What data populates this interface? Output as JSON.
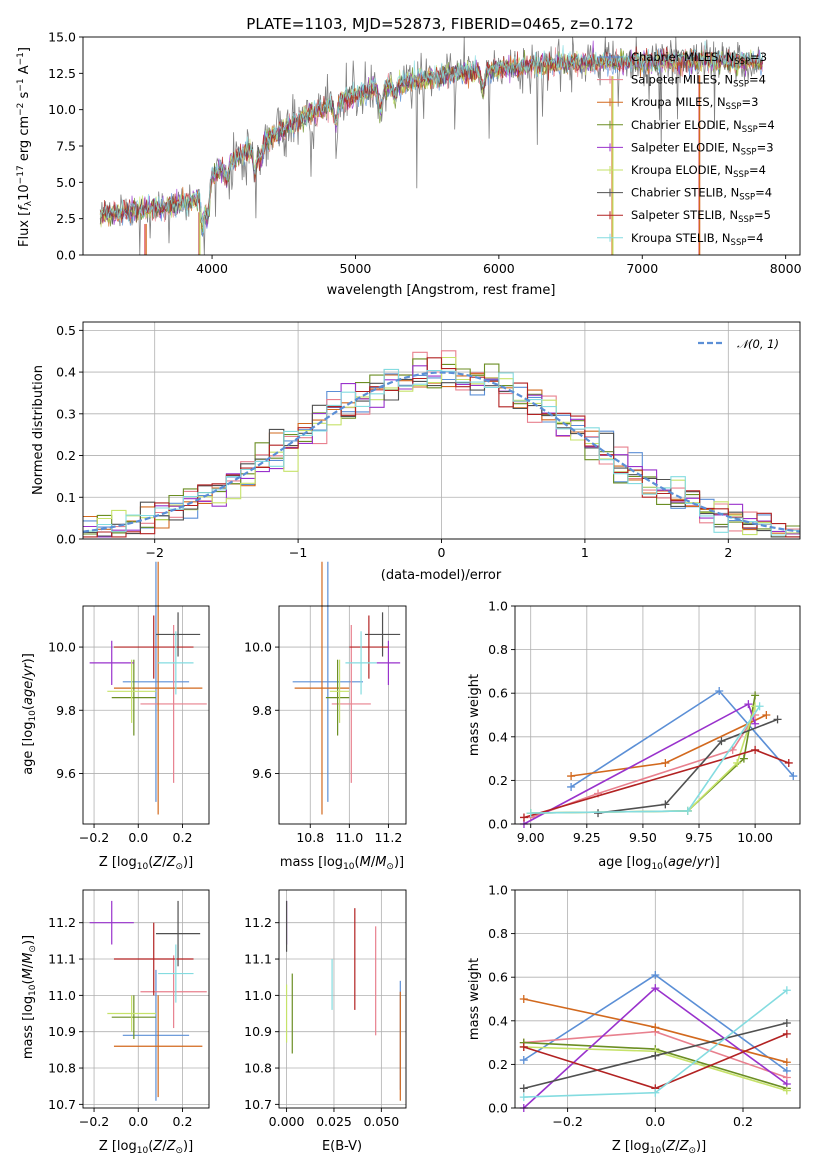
{
  "colors": {
    "Chabrier MILES": "#5b8fd6",
    "Salpeter MILES": "#e8808e",
    "Kroupa MILES": "#d2691e",
    "Chabrier ELODIE": "#6b8e23",
    "Salpeter ELODIE": "#9932cc",
    "Kroupa ELODIE": "#c6e26a",
    "Chabrier STELIB": "#505050",
    "Salpeter STELIB": "#b22222",
    "Kroupa STELIB": "#84dce0"
  },
  "chart_data": [
    {
      "id": "spectrum",
      "type": "line",
      "title": "PLATE=1103, MJD=52873, FIBERID=0465, z=0.172",
      "xlabel": "wavelength [Angstrom, rest frame]",
      "ylabel": "Flux [f_λ 10^-17 erg cm^-2 s^-1 A^-1]",
      "xlim": [
        3100,
        8100
      ],
      "ylim": [
        0,
        15
      ],
      "xticks": [
        "4000",
        "5000",
        "6000",
        "7000",
        "8000"
      ],
      "yticks": [
        "0.0",
        "2.5",
        "5.0",
        "7.5",
        "10.0",
        "12.5",
        "15.0"
      ],
      "grid": false,
      "legend_position": "top-right",
      "continuum": [
        [
          3200,
          2.7
        ],
        [
          3400,
          3.0
        ],
        [
          3600,
          3.2
        ],
        [
          3800,
          3.5
        ],
        [
          3950,
          4.1
        ],
        [
          4000,
          5.5
        ],
        [
          4200,
          6.8
        ],
        [
          4400,
          8.0
        ],
        [
          4600,
          9.3
        ],
        [
          4800,
          10.2
        ],
        [
          5000,
          11.0
        ],
        [
          5200,
          11.6
        ],
        [
          5400,
          12.0
        ],
        [
          5600,
          12.3
        ],
        [
          5800,
          12.6
        ],
        [
          6000,
          12.8
        ],
        [
          6200,
          13.0
        ],
        [
          6500,
          13.2
        ],
        [
          6800,
          13.3
        ],
        [
          7000,
          13.3
        ],
        [
          7300,
          13.4
        ],
        [
          7600,
          13.3
        ],
        [
          7850,
          13.2
        ]
      ],
      "series": [
        {
          "name": "Chabrier MILES, N_SSP=3",
          "label": "Chabrier MILES, N",
          "nssp": "=3"
        },
        {
          "name": "Salpeter MILES, N_SSP=4",
          "label": "Salpeter MILES, N",
          "nssp": "=4"
        },
        {
          "name": "Kroupa MILES, N_SSP=3",
          "label": "Kroupa MILES, N",
          "nssp": "=3"
        },
        {
          "name": "Chabrier ELODIE, N_SSP=4",
          "label": "Chabrier ELODIE, N",
          "nssp": "=4"
        },
        {
          "name": "Salpeter ELODIE, N_SSP=3",
          "label": "Salpeter ELODIE, N",
          "nssp": "=3"
        },
        {
          "name": "Kroupa ELODIE, N_SSP=4",
          "label": "Kroupa ELODIE, N",
          "nssp": "=4"
        },
        {
          "name": "Chabrier STELIB, N_SSP=4",
          "label": "Chabrier STELIB, N",
          "nssp": "=4"
        },
        {
          "name": "Salpeter STELIB, N_SSP=5",
          "label": "Salpeter STELIB, N",
          "nssp": "=5"
        },
        {
          "name": "Kroupa STELIB, N_SSP=4",
          "label": "Kroupa STELIB, N",
          "nssp": "=4"
        }
      ],
      "legend_subscript": "SSP"
    },
    {
      "id": "residuals",
      "type": "line",
      "xlabel": "(data-model)/error",
      "ylabel": "Normed distribution",
      "xlim": [
        -2.5,
        2.5
      ],
      "ylim": [
        0,
        0.52
      ],
      "xticks": [
        "−2",
        "−1",
        "0",
        "1",
        "2"
      ],
      "yticks": [
        "0.0",
        "0.1",
        "0.2",
        "0.3",
        "0.4",
        "0.5"
      ],
      "grid": true,
      "legend": "𝒩(0, 1)",
      "legend_position": "top-right",
      "bin_width": 0.1
    },
    {
      "id": "age-vs-Z",
      "type": "scatter",
      "xlabel": "Z [log10(Z/Z⊙)]",
      "ylabel": "age [log10(age/yr)]",
      "xlim": [
        -0.25,
        0.32
      ],
      "ylim": [
        9.44,
        10.13
      ],
      "xticks": [
        "−0.2",
        "0.0",
        "0.2"
      ],
      "yticks": [
        "9.6",
        "9.8",
        "10.0"
      ],
      "grid": true,
      "points": [
        {
          "model": "Chabrier MILES",
          "x": 0.08,
          "xerr": 0.15,
          "y": 9.89,
          "yerr": 0.38
        },
        {
          "model": "Salpeter MILES",
          "x": 0.16,
          "xerr": 0.15,
          "y": 9.82,
          "yerr": 0.25
        },
        {
          "model": "Kroupa MILES",
          "x": 0.09,
          "xerr": 0.2,
          "y": 9.87,
          "yerr": 0.4
        },
        {
          "model": "Chabrier ELODIE",
          "x": -0.02,
          "xerr": 0.1,
          "y": 9.84,
          "yerr": 0.12
        },
        {
          "model": "Salpeter ELODIE",
          "x": -0.12,
          "xerr": 0.1,
          "y": 9.95,
          "yerr": 0.07
        },
        {
          "model": "Kroupa ELODIE",
          "x": -0.03,
          "xerr": 0.11,
          "y": 9.86,
          "yerr": 0.1
        },
        {
          "model": "Chabrier STELIB",
          "x": 0.18,
          "xerr": 0.1,
          "y": 10.04,
          "yerr": 0.07
        },
        {
          "model": "Salpeter STELIB",
          "x": 0.07,
          "xerr": 0.18,
          "y": 10.0,
          "yerr": 0.1
        },
        {
          "model": "Kroupa STELIB",
          "x": 0.17,
          "xerr": 0.08,
          "y": 9.95,
          "yerr": 0.1
        }
      ]
    },
    {
      "id": "age-vs-mass",
      "type": "scatter",
      "xlabel": "mass [log10(M/M⊙)]",
      "ylabel": "",
      "xlim": [
        10.64,
        11.29
      ],
      "ylim": [
        9.44,
        10.13
      ],
      "xticks": [
        "10.8",
        "11.0",
        "11.2"
      ],
      "yticks": [
        "9.6",
        "9.8",
        "10.0"
      ],
      "grid": true,
      "points": [
        {
          "model": "Chabrier MILES",
          "x": 10.89,
          "xerr": 0.18,
          "y": 9.89,
          "yerr": 0.38
        },
        {
          "model": "Salpeter MILES",
          "x": 11.01,
          "xerr": 0.1,
          "y": 9.82,
          "yerr": 0.25
        },
        {
          "model": "Kroupa MILES",
          "x": 10.86,
          "xerr": 0.14,
          "y": 9.87,
          "yerr": 0.4
        },
        {
          "model": "Chabrier ELODIE",
          "x": 10.94,
          "xerr": 0.06,
          "y": 9.84,
          "yerr": 0.12
        },
        {
          "model": "Salpeter ELODIE",
          "x": 11.2,
          "xerr": 0.06,
          "y": 9.95,
          "yerr": 0.07
        },
        {
          "model": "Kroupa ELODIE",
          "x": 10.95,
          "xerr": 0.05,
          "y": 9.86,
          "yerr": 0.1
        },
        {
          "model": "Chabrier STELIB",
          "x": 11.17,
          "xerr": 0.09,
          "y": 10.04,
          "yerr": 0.07
        },
        {
          "model": "Salpeter STELIB",
          "x": 11.1,
          "xerr": 0.1,
          "y": 10.0,
          "yerr": 0.1
        },
        {
          "model": "Kroupa STELIB",
          "x": 11.06,
          "xerr": 0.08,
          "y": 9.95,
          "yerr": 0.1
        }
      ]
    },
    {
      "id": "mass-weight-vs-age",
      "type": "line",
      "xlabel": "age [log10(age/yr)]",
      "ylabel": "mass weight",
      "xlim": [
        8.93,
        10.2
      ],
      "ylim": [
        0,
        1
      ],
      "xticks": [
        "9.00",
        "9.25",
        "9.50",
        "9.75",
        "10.00"
      ],
      "yticks": [
        "0.0",
        "0.2",
        "0.4",
        "0.6",
        "0.8",
        "1.0"
      ],
      "grid": true,
      "series": [
        {
          "model": "Chabrier MILES",
          "x": [
            9.18,
            9.84,
            10.17
          ],
          "y": [
            0.17,
            0.61,
            0.22
          ]
        },
        {
          "model": "Salpeter MILES",
          "x": [
            9.0,
            9.3,
            9.9,
            10.0
          ],
          "y": [
            0.03,
            0.14,
            0.34,
            0.5
          ]
        },
        {
          "model": "Kroupa MILES",
          "x": [
            9.18,
            9.6,
            10.05
          ],
          "y": [
            0.22,
            0.28,
            0.5
          ]
        },
        {
          "model": "Chabrier ELODIE",
          "x": [
            9.0,
            9.7,
            9.95,
            10.0
          ],
          "y": [
            0.05,
            0.06,
            0.3,
            0.59
          ]
        },
        {
          "model": "Salpeter ELODIE",
          "x": [
            8.97,
            9.97,
            10.0
          ],
          "y": [
            0.0,
            0.55,
            0.46
          ]
        },
        {
          "model": "Kroupa ELODIE",
          "x": [
            9.0,
            9.7,
            9.92,
            10.0
          ],
          "y": [
            0.05,
            0.06,
            0.28,
            0.54
          ]
        },
        {
          "model": "Chabrier STELIB",
          "x": [
            9.3,
            9.6,
            9.85,
            10.1
          ],
          "y": [
            0.05,
            0.09,
            0.38,
            0.48
          ]
        },
        {
          "model": "Salpeter STELIB",
          "x": [
            8.97,
            10.0,
            10.15
          ],
          "y": [
            0.03,
            0.34,
            0.28
          ]
        },
        {
          "model": "Kroupa STELIB",
          "x": [
            9.0,
            9.7,
            10.02
          ],
          "y": [
            0.05,
            0.06,
            0.54
          ]
        }
      ]
    },
    {
      "id": "mass-vs-Z",
      "type": "scatter",
      "xlabel": "Z [log10(Z/Z⊙)]",
      "ylabel": "mass [log10(M/M⊙)]",
      "xlim": [
        -0.25,
        0.32
      ],
      "ylim": [
        10.69,
        11.29
      ],
      "xticks": [
        "−0.2",
        "0.0",
        "0.2"
      ],
      "yticks": [
        "10.7",
        "10.8",
        "10.9",
        "11.0",
        "11.1",
        "11.2"
      ],
      "grid": true,
      "points": [
        {
          "model": "Chabrier MILES",
          "x": 0.08,
          "xerr": 0.15,
          "y": 10.89,
          "yerr": 0.18
        },
        {
          "model": "Salpeter MILES",
          "x": 0.16,
          "xerr": 0.15,
          "y": 11.01,
          "yerr": 0.1
        },
        {
          "model": "Kroupa MILES",
          "x": 0.09,
          "xerr": 0.2,
          "y": 10.86,
          "yerr": 0.14
        },
        {
          "model": "Chabrier ELODIE",
          "x": -0.02,
          "xerr": 0.1,
          "y": 10.94,
          "yerr": 0.06
        },
        {
          "model": "Salpeter ELODIE",
          "x": -0.12,
          "xerr": 0.1,
          "y": 11.2,
          "yerr": 0.06
        },
        {
          "model": "Kroupa ELODIE",
          "x": -0.03,
          "xerr": 0.11,
          "y": 10.95,
          "yerr": 0.05
        },
        {
          "model": "Chabrier STELIB",
          "x": 0.18,
          "xerr": 0.1,
          "y": 11.17,
          "yerr": 0.09
        },
        {
          "model": "Salpeter STELIB",
          "x": 0.07,
          "xerr": 0.18,
          "y": 11.1,
          "yerr": 0.1
        },
        {
          "model": "Kroupa STELIB",
          "x": 0.17,
          "xerr": 0.08,
          "y": 11.06,
          "yerr": 0.08
        }
      ]
    },
    {
      "id": "mass-vs-ebv",
      "type": "scatter",
      "xlabel": "E(B-V)",
      "ylabel": "",
      "xlim": [
        -0.004,
        0.063
      ],
      "ylim": [
        10.69,
        11.29
      ],
      "xticks": [
        "0.000",
        "0.025",
        "0.050"
      ],
      "yticks": [
        "10.7",
        "10.8",
        "10.9",
        "11.0",
        "11.1",
        "11.2"
      ],
      "grid": true,
      "points": [
        {
          "model": "Chabrier MILES",
          "x": 0.06,
          "y": 10.89,
          "yerr": 0.15
        },
        {
          "model": "Salpeter MILES",
          "x": 0.047,
          "y": 11.04,
          "yerr": 0.15
        },
        {
          "model": "Kroupa MILES",
          "x": 0.06,
          "y": 10.86,
          "yerr": 0.15
        },
        {
          "model": "Chabrier ELODIE",
          "x": 0.003,
          "y": 10.95,
          "yerr": 0.11
        },
        {
          "model": "Salpeter ELODIE",
          "x": 0.0,
          "y": 11.2,
          "yerr": 0.06
        },
        {
          "model": "Kroupa ELODIE",
          "x": 0.0,
          "y": 10.95,
          "yerr": 0.08
        },
        {
          "model": "Chabrier STELIB",
          "x": 0.0,
          "y": 11.19,
          "yerr": 0.07
        },
        {
          "model": "Salpeter STELIB",
          "x": 0.036,
          "y": 11.1,
          "yerr": 0.14
        },
        {
          "model": "Kroupa STELIB",
          "x": 0.024,
          "y": 11.03,
          "yerr": 0.07
        }
      ]
    },
    {
      "id": "mass-weight-vs-Z",
      "type": "line",
      "xlabel": "Z [log10(Z/Z⊙)]",
      "ylabel": "mass weight",
      "xlim": [
        -0.32,
        0.33
      ],
      "ylim": [
        0,
        1
      ],
      "xticks": [
        "−0.2",
        "0.0",
        "0.2"
      ],
      "yticks": [
        "0.0",
        "0.2",
        "0.4",
        "0.6",
        "0.8",
        "1.0"
      ],
      "grid": true,
      "series": [
        {
          "model": "Chabrier MILES",
          "x": [
            -0.3,
            0.0,
            0.3
          ],
          "y": [
            0.22,
            0.61,
            0.17
          ]
        },
        {
          "model": "Salpeter MILES",
          "x": [
            -0.3,
            0.0,
            0.3
          ],
          "y": [
            0.3,
            0.35,
            0.14
          ]
        },
        {
          "model": "Kroupa MILES",
          "x": [
            -0.3,
            0.0,
            0.3
          ],
          "y": [
            0.5,
            0.37,
            0.21
          ]
        },
        {
          "model": "Chabrier ELODIE",
          "x": [
            -0.3,
            0.0,
            0.3
          ],
          "y": [
            0.3,
            0.27,
            0.09
          ]
        },
        {
          "model": "Salpeter ELODIE",
          "x": [
            -0.3,
            0.0,
            0.3
          ],
          "y": [
            0.0,
            0.55,
            0.11
          ]
        },
        {
          "model": "Kroupa ELODIE",
          "x": [
            -0.3,
            0.0,
            0.3
          ],
          "y": [
            0.28,
            0.26,
            0.08
          ]
        },
        {
          "model": "Chabrier STELIB",
          "x": [
            -0.3,
            0.0,
            0.3
          ],
          "y": [
            0.09,
            0.24,
            0.39
          ]
        },
        {
          "model": "Salpeter STELIB",
          "x": [
            -0.3,
            0.0,
            0.3
          ],
          "y": [
            0.28,
            0.09,
            0.34
          ]
        },
        {
          "model": "Kroupa STELIB",
          "x": [
            -0.3,
            0.0,
            0.3
          ],
          "y": [
            0.05,
            0.07,
            0.54
          ]
        }
      ]
    }
  ]
}
